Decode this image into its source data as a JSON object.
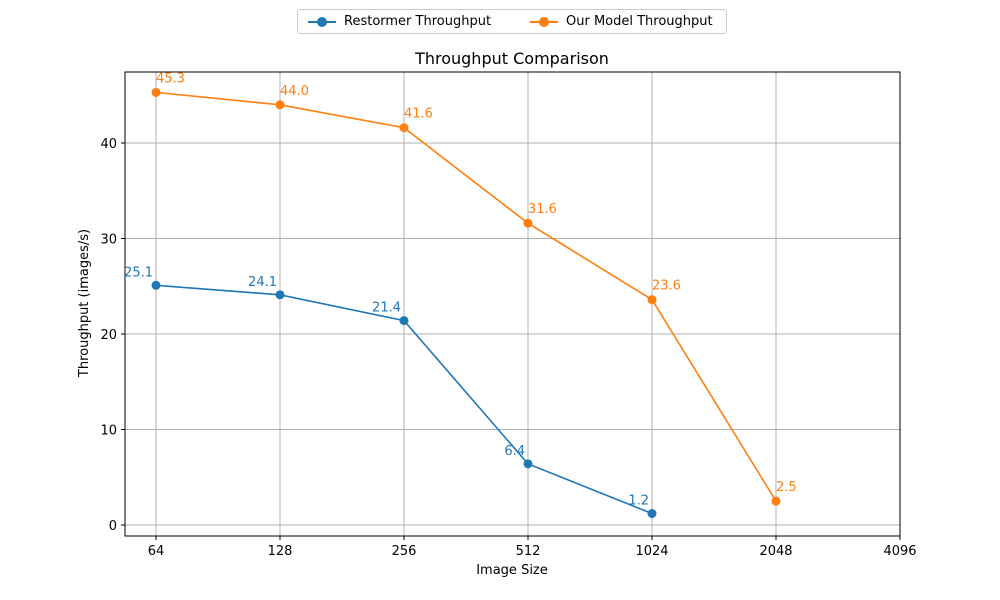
{
  "chart_data": {
    "type": "line",
    "title": "Throughput Comparison",
    "xlabel": "Image Size",
    "ylabel": "Throughput (images/s)",
    "x_tick_labels": [
      "64",
      "128",
      "256",
      "512",
      "1024",
      "2048",
      "4096"
    ],
    "x_scale": "log2",
    "xlim": [
      64,
      4096
    ],
    "ylim": [
      0,
      47.5
    ],
    "y_ticks": [
      0,
      10,
      20,
      30,
      40
    ],
    "grid": true,
    "legend_position": "top-center",
    "series": [
      {
        "name": "Restormer Throughput",
        "color": "#1f77b4",
        "x": [
          64,
          128,
          256,
          512,
          1024
        ],
        "values": [
          25.1,
          24.1,
          21.4,
          6.4,
          1.2
        ],
        "labels": [
          "25.1",
          "24.1",
          "21.4",
          "6.4",
          "1.2"
        ]
      },
      {
        "name": "Our Model Throughput",
        "color": "#ff7f0e",
        "x": [
          64,
          128,
          256,
          512,
          1024,
          2048
        ],
        "values": [
          45.3,
          44.0,
          41.6,
          31.6,
          23.6,
          2.5
        ],
        "labels": [
          "45.3",
          "44.0",
          "41.6",
          "31.6",
          "23.6",
          "2.5"
        ]
      }
    ]
  }
}
